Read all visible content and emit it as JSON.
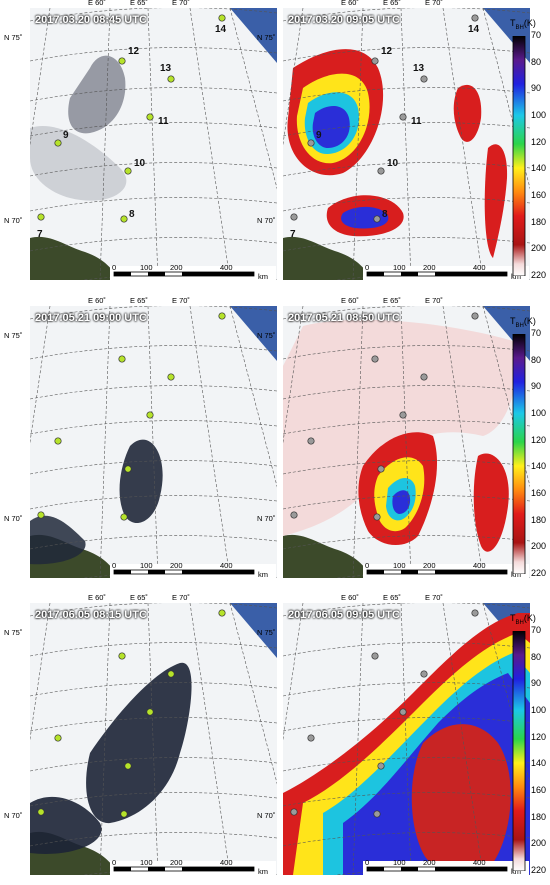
{
  "rows": [
    {
      "left": {
        "timestamp": "2017.03.20 08:45 UTC",
        "type": "optical"
      },
      "right": {
        "timestamp": "2017.03.20 09:05 UTC",
        "type": "tb"
      },
      "labels_visible": true
    },
    {
      "left": {
        "timestamp": "2017.05.21 09:00 UTC",
        "type": "optical"
      },
      "right": {
        "timestamp": "2017.05.21 08:50 UTC",
        "type": "tb"
      },
      "labels_visible": false
    },
    {
      "left": {
        "timestamp": "2017.06.05 08:15 UTC",
        "type": "optical"
      },
      "right": {
        "timestamp": "2017.06.05 09:05 UTC",
        "type": "tb"
      },
      "labels_visible": false
    }
  ],
  "longitude_labels": [
    "E 60˚",
    "E 65˚",
    "E 70˚"
  ],
  "latitude_labels": [
    "N 75˚",
    "N 70˚"
  ],
  "sites": [
    "7",
    "8",
    "9",
    "10",
    "11",
    "12",
    "13",
    "14"
  ],
  "scale_bar": {
    "ticks": [
      "0",
      "100",
      "200",
      "400"
    ],
    "unit": "km"
  },
  "colorbar": {
    "title_main": "T",
    "title_sub": "BH",
    "title_unit": "(K)",
    "labels": [
      "70",
      "80",
      "90",
      "100",
      "120",
      "140",
      "160",
      "180",
      "200",
      "220"
    ]
  },
  "colors": {
    "sea": "#3a5fa8",
    "land": "#3c4a2a",
    "ice": "#f2f4f6",
    "site_optical": "#b6e32a",
    "site_tb": "#9a9a9a"
  }
}
